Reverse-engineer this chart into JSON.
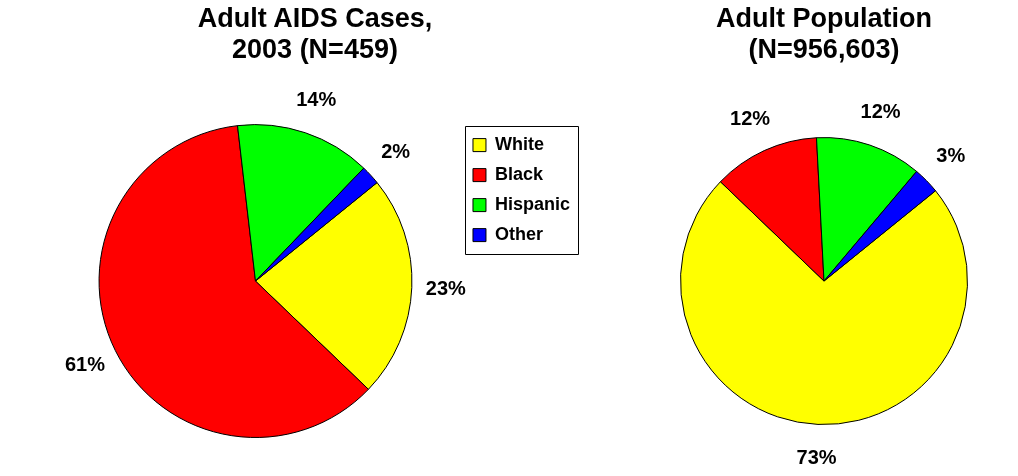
{
  "chart_data": [
    {
      "type": "pie",
      "title": "Adult AIDS Cases,\n2003 (N=459)",
      "categories": [
        "White",
        "Black",
        "Hispanic",
        "Other"
      ],
      "values": [
        23,
        61,
        14,
        2
      ],
      "colors": [
        "#ffff00",
        "#ff0000",
        "#00ff00",
        "#0000ff"
      ],
      "value_labels": [
        "23%",
        "61%",
        "14%",
        "2%"
      ],
      "legend": "right"
    },
    {
      "type": "pie",
      "title": "Adult Population\n(N=956,603)",
      "categories": [
        null,
        null,
        null,
        null
      ],
      "values": [
        73,
        12,
        12,
        3
      ],
      "colors": [
        "#ffff00",
        "#ff0000",
        "#00ff00",
        "#0000ff"
      ],
      "value_labels": [
        "73%",
        "12%",
        "12%",
        "3%"
      ]
    }
  ]
}
